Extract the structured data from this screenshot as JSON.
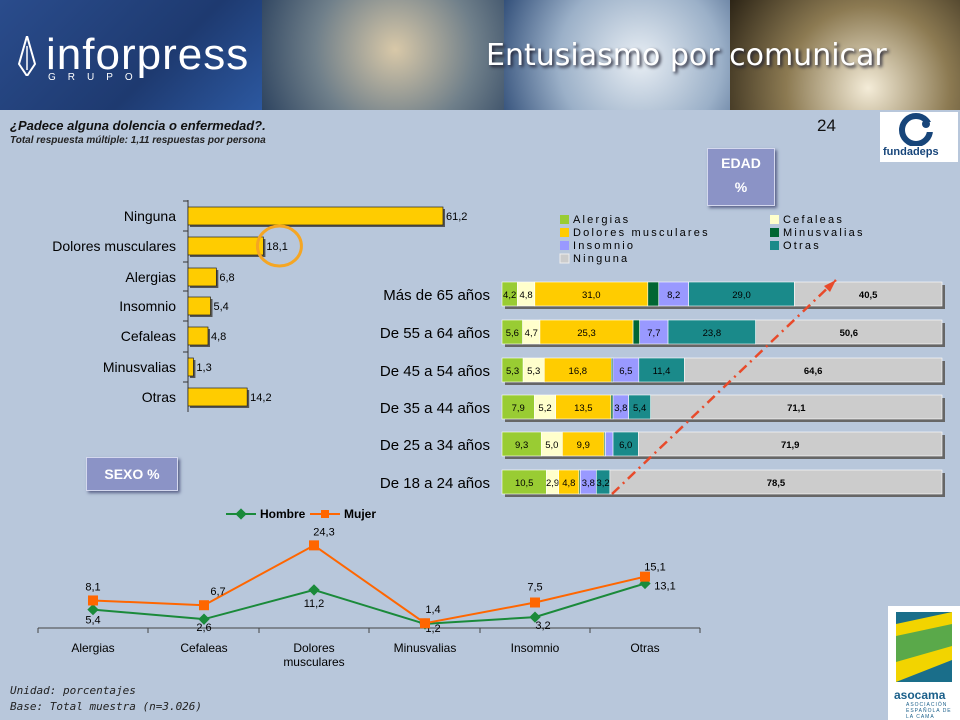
{
  "header": {
    "logo_text": "inforpress",
    "logo_subtext": "GRUPO",
    "slogan": "Entusiasmo por comunicar",
    "page_number": "24",
    "partner_logo": "fundadeps"
  },
  "question": {
    "title": "¿Padece alguna dolencia o enfermedad?.",
    "note": "Total respuesta múltiple: 1,11 respuestas por persona"
  },
  "tags": {
    "edad_line1": "EDAD",
    "edad_line2": "%",
    "sexo": "SEXO %"
  },
  "footer": {
    "unit": "Unidad: porcentajes",
    "base": "Base: Total muestra (n=3.026)",
    "logo_name": "asocama",
    "logo_sub": "ASOCIACIÓN ESPAÑOLA DE LA CAMA"
  },
  "colors": {
    "alergias": "#99cc33",
    "cefaleas": "#ffffcc",
    "dolores": "#ffcc00",
    "minusvalias": "#006633",
    "insomnio": "#9999ff",
    "otras": "#1a8a8a",
    "ninguna": "#cccccc",
    "hombre": "#1a8a3a",
    "mujer": "#ff6600",
    "highlight": "#f5a623",
    "arrow": "#e84a2a"
  },
  "chart_data": [
    {
      "type": "bar",
      "orientation": "horizontal",
      "categories": [
        "Ninguna",
        "Dolores musculares",
        "Alergias",
        "Insomnio",
        "Cefaleas",
        "Minusvalias",
        "Otras"
      ],
      "values": [
        61.2,
        18.1,
        6.8,
        5.4,
        4.8,
        1.3,
        14.2
      ],
      "value_labels": [
        "61,2",
        "18,1",
        "6,8",
        "5,4",
        "4,8",
        "1,3",
        "14,2"
      ],
      "highlighted": "Dolores musculares",
      "xlim": [
        0,
        70
      ]
    },
    {
      "type": "bar",
      "stacked": true,
      "orientation": "horizontal",
      "categories": [
        "Más de 65 años",
        "De 55 a 64 años",
        "De 45 a 54 años",
        "De  35 a 44 años",
        "De 25 a 34 años",
        "De 18 a 24 años"
      ],
      "legend": [
        "Alergias",
        "Cefaleas",
        "Dolores musculares",
        "Minusvalias",
        "Insomnio",
        "Otras",
        "Ninguna"
      ],
      "legend_keys": [
        "alergias",
        "cefaleas",
        "dolores",
        "minusvalias",
        "insomnio",
        "otras",
        "ninguna"
      ],
      "series": [
        {
          "name": "Alergias",
          "values": [
            4.2,
            5.6,
            5.3,
            7.9,
            9.3,
            10.5
          ],
          "labels": [
            "4,2",
            "5,6",
            "5,3",
            "7,9",
            "9,3",
            "10,5"
          ]
        },
        {
          "name": "Cefaleas",
          "values": [
            4.8,
            4.7,
            5.3,
            5.2,
            5.0,
            2.9
          ],
          "labels": [
            "4,8",
            "4,7",
            "5,3",
            "5,2",
            "5,0",
            "2,9"
          ]
        },
        {
          "name": "Dolores musculares",
          "values": [
            31.0,
            25.3,
            16.8,
            13.5,
            9.9,
            4.8
          ],
          "labels": [
            "31,0",
            "25,3",
            "16,8",
            "13,5",
            "9,9",
            "4,8"
          ]
        },
        {
          "name": "Minusvalias",
          "values": [
            3.0,
            1.8,
            0.4,
            0.5,
            0.3,
            0.3
          ],
          "labels": [
            "",
            "",
            "",
            "",
            "",
            ""
          ]
        },
        {
          "name": "Insomnio",
          "values": [
            8.2,
            7.7,
            6.5,
            3.8,
            1.8,
            3.8
          ],
          "labels": [
            "8,2",
            "7,7",
            "6,5",
            "3,8",
            "",
            "3,8"
          ]
        },
        {
          "name": "Otras",
          "values": [
            29.0,
            23.8,
            11.4,
            5.4,
            6.0,
            3.2
          ],
          "labels": [
            "29,0",
            "23,8",
            "11,4",
            "5,4",
            "6,0",
            "3,2"
          ]
        },
        {
          "name": "Ninguna",
          "values": [
            40.5,
            50.6,
            64.6,
            71.1,
            71.9,
            78.5
          ],
          "labels": [
            "40,5",
            "50,6",
            "64,6",
            "71,1",
            "71,9",
            "78,5"
          ]
        }
      ]
    },
    {
      "type": "line",
      "categories": [
        "Alergias",
        "Cefaleas",
        "Dolores\nmusculares",
        "Minusvalias",
        "Insomnio",
        "Otras"
      ],
      "category_lines": [
        [
          "Alergias"
        ],
        [
          "Cefaleas"
        ],
        [
          "Dolores",
          "musculares"
        ],
        [
          "Minusvalias"
        ],
        [
          "Insomnio"
        ],
        [
          "Otras"
        ]
      ],
      "series": [
        {
          "name": "Hombre",
          "values": [
            5.4,
            2.6,
            11.2,
            1.2,
            3.2,
            13.1
          ],
          "labels": [
            "5,4",
            "2,6",
            "11,2",
            "1,2",
            "3,2",
            "13,1"
          ]
        },
        {
          "name": "Mujer",
          "values": [
            8.1,
            6.7,
            24.3,
            1.4,
            7.5,
            15.1
          ],
          "labels": [
            "8,1",
            "6,7",
            "24,3",
            "1,4",
            "7,5",
            "15,1"
          ]
        }
      ],
      "ylim": [
        0,
        30
      ]
    }
  ]
}
